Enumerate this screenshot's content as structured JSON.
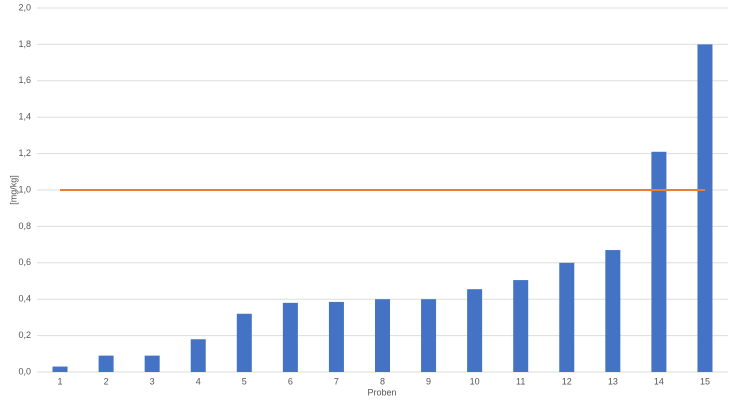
{
  "chart_data": {
    "type": "bar",
    "y_label": "[mg/kg]",
    "x_label": "Proben",
    "categories": [
      "1",
      "2",
      "3",
      "4",
      "5",
      "6",
      "7",
      "8",
      "9",
      "10",
      "11",
      "12",
      "13",
      "14",
      "15"
    ],
    "values": [
      0.03,
      0.09,
      0.09,
      0.18,
      0.32,
      0.38,
      0.385,
      0.4,
      0.4,
      0.455,
      0.505,
      0.6,
      0.67,
      1.21,
      1.8
    ],
    "color": "#4472c4",
    "reference_line": {
      "value": 1.0,
      "color": "#ed7d31"
    },
    "ylim": [
      0,
      2.0
    ],
    "yticks": [
      {
        "value": 0,
        "label": "0,0"
      },
      {
        "value": 0.2,
        "label": "0,2"
      },
      {
        "value": 0.4,
        "label": "0,4"
      },
      {
        "value": 0.6,
        "label": "0,6"
      },
      {
        "value": 0.8,
        "label": "0,8"
      },
      {
        "value": 1.0,
        "label": "1,0"
      },
      {
        "value": 1.2,
        "label": "1,2"
      },
      {
        "value": 1.4,
        "label": "1,4"
      },
      {
        "value": 1.6,
        "label": "1,6"
      },
      {
        "value": 1.8,
        "label": "1,8"
      },
      {
        "value": 2.0,
        "label": "2,0"
      }
    ],
    "grid": true
  }
}
